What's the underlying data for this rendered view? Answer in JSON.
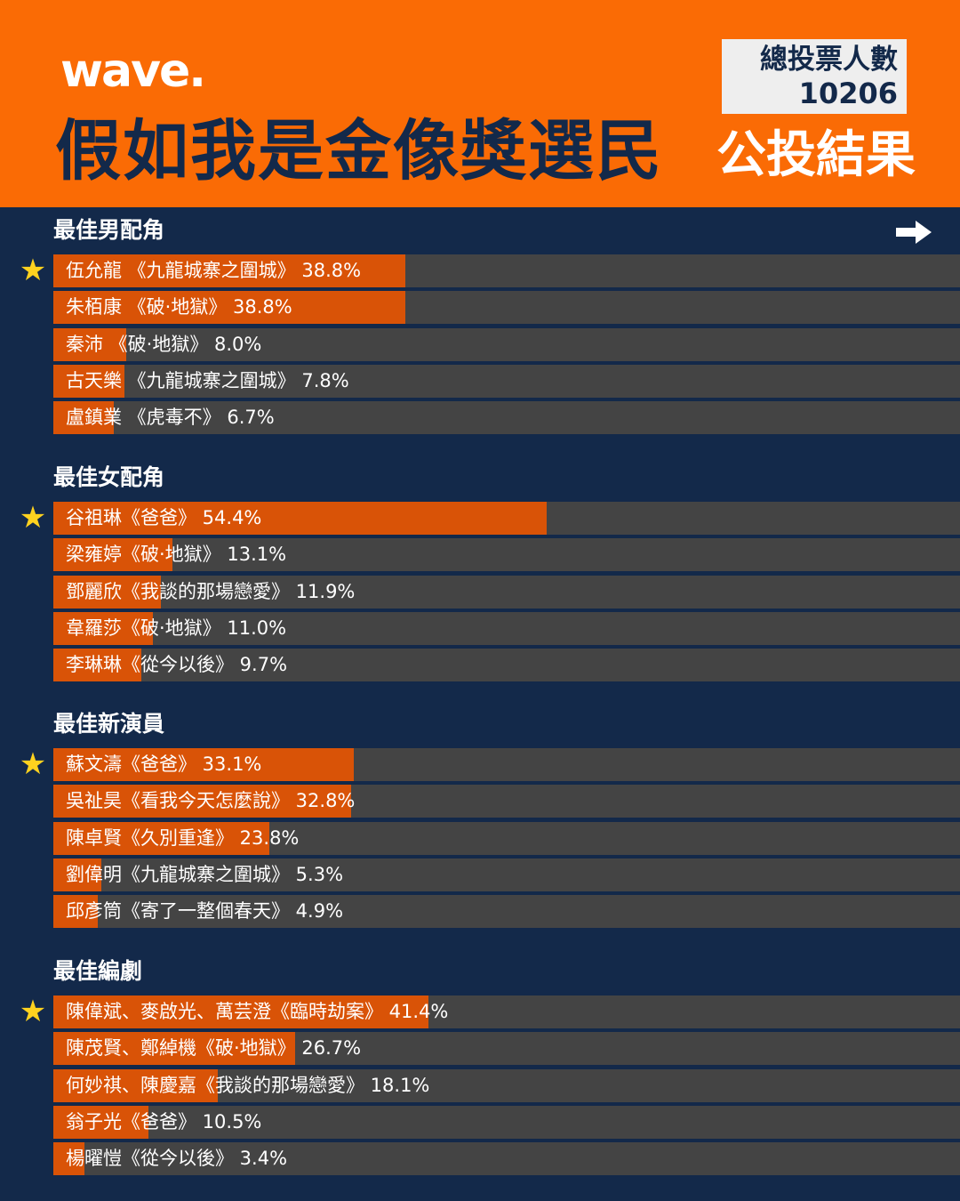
{
  "header": {
    "logo": "wave.",
    "title": "假如我是金像獎選民",
    "subtitle": "公投結果",
    "total_votes_label": "總投票人數",
    "total_votes": "10206"
  },
  "colors": {
    "header_bg": "#fa6b05",
    "page_bg": "#13294a",
    "bar_fill": "#d95307",
    "bar_track": "#444444",
    "winner_star": "#ffd21f"
  },
  "icons": {
    "next": "arrow-right-icon",
    "winner": "star-icon"
  },
  "chart_data": [
    {
      "type": "bar",
      "orientation": "horizontal",
      "title": "最佳男配角",
      "unit": "%",
      "xlim": [
        0,
        100
      ],
      "categories": [
        "伍允龍 《九龍城寨之圍城》",
        "朱栢康 《破·地獄》",
        "秦沛 《破·地獄》",
        "古天樂 《九龍城寨之圍城》",
        "盧鎮業 《虎毒不》"
      ],
      "values": [
        38.8,
        38.8,
        8.0,
        7.8,
        6.7
      ],
      "labels": [
        "38.8%",
        "38.8%",
        "8.0%",
        "7.8%",
        "6.7%"
      ],
      "winner_index": 0
    },
    {
      "type": "bar",
      "orientation": "horizontal",
      "title": "最佳女配角",
      "unit": "%",
      "xlim": [
        0,
        100
      ],
      "categories": [
        "谷祖琳《爸爸》",
        "梁雍婷《破·地獄》",
        "鄧麗欣《我談的那場戀愛》",
        "韋羅莎《破·地獄》",
        "李琳琳《從今以後》"
      ],
      "values": [
        54.4,
        13.1,
        11.9,
        11.0,
        9.7
      ],
      "labels": [
        "54.4%",
        "13.1%",
        "11.9%",
        "11.0%",
        "9.7%"
      ],
      "winner_index": 0
    },
    {
      "type": "bar",
      "orientation": "horizontal",
      "title": "最佳新演員",
      "unit": "%",
      "xlim": [
        0,
        100
      ],
      "categories": [
        "蘇文濤《爸爸》",
        "吳祉昊《看我今天怎麼說》",
        "陳卓賢《久別重逢》",
        "劉偉明《九龍城寨之圍城》",
        "邱彥筒《寄了一整個春天》"
      ],
      "values": [
        33.1,
        32.8,
        23.8,
        5.3,
        4.9
      ],
      "labels": [
        "33.1%",
        "32.8%",
        "23.8%",
        "5.3%",
        "4.9%"
      ],
      "winner_index": 0
    },
    {
      "type": "bar",
      "orientation": "horizontal",
      "title": "最佳編劇",
      "unit": "%",
      "xlim": [
        0,
        100
      ],
      "categories": [
        "陳偉斌、麥啟光、萬芸澄《臨時劫案》",
        "陳茂賢、鄭綽機《破·地獄》",
        "何妙祺、陳慶嘉《我談的那場戀愛》",
        "翁子光《爸爸》",
        "楊曜愷《從今以後》"
      ],
      "values": [
        41.4,
        26.7,
        18.1,
        10.5,
        3.4
      ],
      "labels": [
        "41.4%",
        "26.7%",
        "18.1%",
        "10.5%",
        "3.4%"
      ],
      "winner_index": 0
    }
  ]
}
